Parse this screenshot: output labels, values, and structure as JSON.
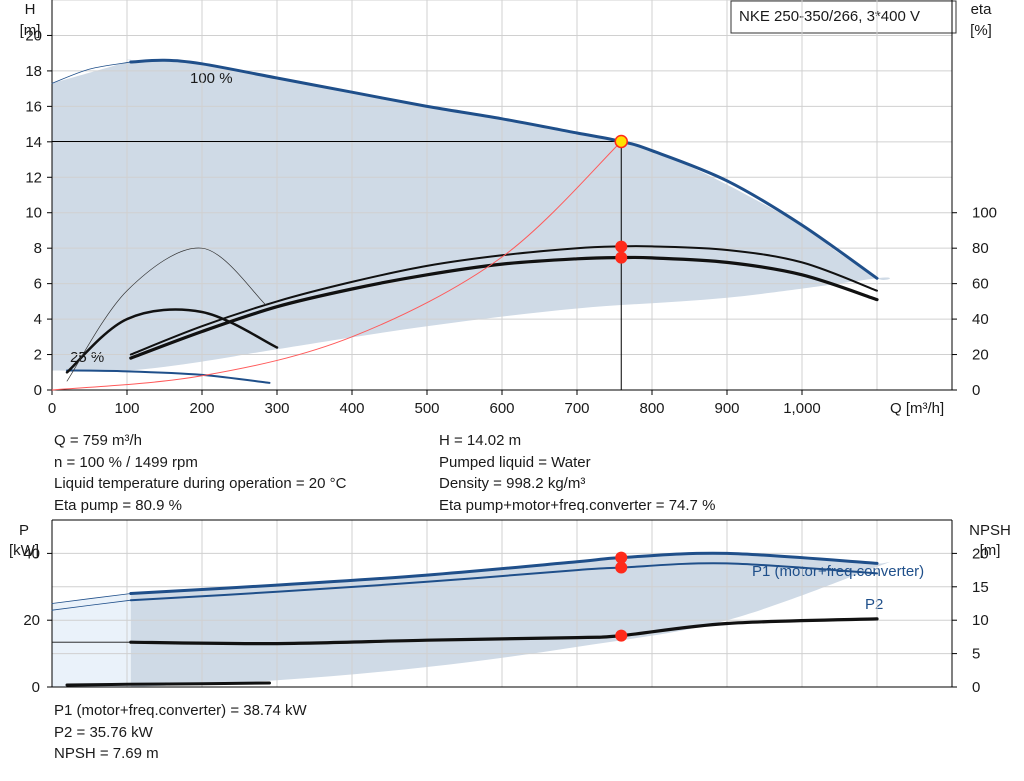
{
  "chart_data": [
    {
      "type": "line",
      "title_box": "NKE 250-350/266, 3*400 V",
      "y_label_left": [
        "H",
        "[m]"
      ],
      "y_label_right": [
        "eta",
        "[%]"
      ],
      "x_label": "Q [m³/h]",
      "x_ticks": [
        "0",
        "100",
        "200",
        "300",
        "400",
        "500",
        "600",
        "700",
        "800",
        "900",
        "1,000"
      ],
      "x_range": [
        0,
        1200
      ],
      "y_left_ticks": [
        "0",
        "2",
        "4",
        "6",
        "8",
        "10",
        "12",
        "14",
        "16",
        "18",
        "20"
      ],
      "y_left_range": [
        0,
        22
      ],
      "y_right_ticks": [
        "0",
        "20",
        "40",
        "60",
        "80",
        "100"
      ],
      "y_right_range": [
        0,
        220
      ],
      "curve_labels": [
        "100 %",
        "25 %"
      ],
      "operating_point": {
        "Q": 759,
        "H": 14.02,
        "eta_pump": 80.9,
        "eta_total": 74.7
      },
      "series": [
        {
          "name": "100 %",
          "axis": "H",
          "x": [
            105,
            150,
            200,
            300,
            400,
            500,
            600,
            700,
            759,
            800,
            900,
            1000,
            1100
          ],
          "y": [
            18.5,
            18.6,
            18.4,
            17.6,
            16.8,
            16.0,
            15.3,
            14.5,
            14.02,
            13.5,
            11.8,
            9.3,
            6.3
          ]
        },
        {
          "axis": "H",
          "x": [
            0,
            50,
            105
          ],
          "y": [
            17.3,
            18.1,
            18.5
          ]
        },
        {
          "name": "25 %",
          "axis": "H",
          "x": [
            20,
            100,
            200,
            290
          ],
          "y": [
            1.1,
            1.05,
            0.85,
            0.4
          ]
        },
        {
          "axis": "eta",
          "x": [
            105,
            200,
            300,
            400,
            500,
            600,
            700,
            759,
            800,
            900,
            1000,
            1100
          ],
          "y": [
            20,
            36,
            50,
            61,
            70,
            76,
            80,
            81,
            81,
            79,
            72,
            56
          ]
        },
        {
          "axis": "eta",
          "x": [
            105,
            200,
            300,
            400,
            500,
            600,
            700,
            759,
            800,
            900,
            1000,
            1100
          ],
          "y": [
            18,
            33,
            47,
            57,
            65,
            71,
            74,
            74.7,
            74.5,
            72,
            65,
            51
          ]
        },
        {
          "axis": "eta",
          "x": [
            20,
            100,
            200,
            300
          ],
          "y": [
            10,
            40,
            44,
            24
          ]
        },
        {
          "axis": "eta",
          "x": [
            20,
            100,
            200,
            285
          ],
          "y": [
            5,
            56,
            80,
            48
          ]
        },
        {
          "axis": "H",
          "x": [
            0,
            200,
            400,
            600,
            759
          ],
          "y": [
            0,
            0.8,
            3.0,
            7.5,
            14.02
          ]
        }
      ],
      "envelope": {
        "x": [
          0,
          100,
          105,
          200,
          400,
          600,
          800,
          1000,
          1040,
          1100,
          1100,
          900,
          700,
          500,
          300,
          200,
          100,
          0
        ],
        "y": [
          17.3,
          18.5,
          18.6,
          18.4,
          16.8,
          15.3,
          13.5,
          9.3,
          8.0,
          6.3,
          6.3,
          5.2,
          4.6,
          3.6,
          2.3,
          1.6,
          1.1,
          1.1
        ]
      }
    },
    {
      "type": "line",
      "y_label_left": [
        "P",
        "[kW]"
      ],
      "y_label_right": [
        "NPSH",
        "[m]"
      ],
      "y_left_ticks": [
        "0",
        "20",
        "40"
      ],
      "y_left_range": [
        0,
        50
      ],
      "y_right_ticks": [
        "0",
        "5",
        "10",
        "15",
        "20"
      ],
      "y_right_range": [
        0,
        25
      ],
      "series": [
        {
          "name": "P1 (motor+freq.converter)",
          "axis": "P",
          "x": [
            105,
            300,
            500,
            700,
            759,
            900,
            1100
          ],
          "y": [
            28,
            30.5,
            33.5,
            37.5,
            38.74,
            40,
            37
          ]
        },
        {
          "axis": "P",
          "x": [
            0,
            105
          ],
          "y": [
            25,
            28
          ]
        },
        {
          "name": "P2",
          "axis": "P",
          "x": [
            105,
            300,
            500,
            700,
            759,
            900,
            1100
          ],
          "y": [
            26,
            28.5,
            31.5,
            35,
            35.76,
            37,
            34
          ]
        },
        {
          "axis": "P",
          "x": [
            0,
            105
          ],
          "y": [
            23,
            26
          ]
        },
        {
          "axis": "NPSH",
          "x": [
            105,
            300,
            500,
            700,
            759,
            900,
            1100
          ],
          "y": [
            6.7,
            6.5,
            7.0,
            7.4,
            7.69,
            9.5,
            10.2
          ]
        },
        {
          "axis": "NPSH",
          "x": [
            0,
            105
          ],
          "y": [
            6.7,
            6.7
          ]
        },
        {
          "axis": "NPSH",
          "x": [
            20,
            100,
            200,
            290
          ],
          "y": [
            0.3,
            0.4,
            0.5,
            0.6
          ]
        }
      ],
      "series_labels": [
        "P1 (motor+freq.converter)",
        "P2"
      ]
    }
  ],
  "info_top": {
    "left": [
      "Q = 759 m³/h",
      "n = 100 % / 1499 rpm",
      "Liquid temperature during operation = 20 °C",
      "Eta pump = 80.9 %"
    ],
    "right": [
      "H = 14.02 m",
      "Pumped liquid = Water",
      "Density = 998.2 kg/m³",
      "Eta pump+motor+freq.converter = 74.7 %"
    ]
  },
  "info_bottom": [
    "P1 (motor+freq.converter) = 38.74 kW",
    "P2 = 35.76 kW",
    "NPSH = 7.69 m"
  ],
  "colors": {
    "envelope": "#cfdae6",
    "envelope_light": "#eaf2fa",
    "curve_blue": "#1f4f8a",
    "curve_black": "#111111",
    "op_point": "#ff2a1a",
    "op_circle": "#ffe000",
    "system_curve": "#ff5a5a",
    "grid": "#d0d0d0"
  }
}
